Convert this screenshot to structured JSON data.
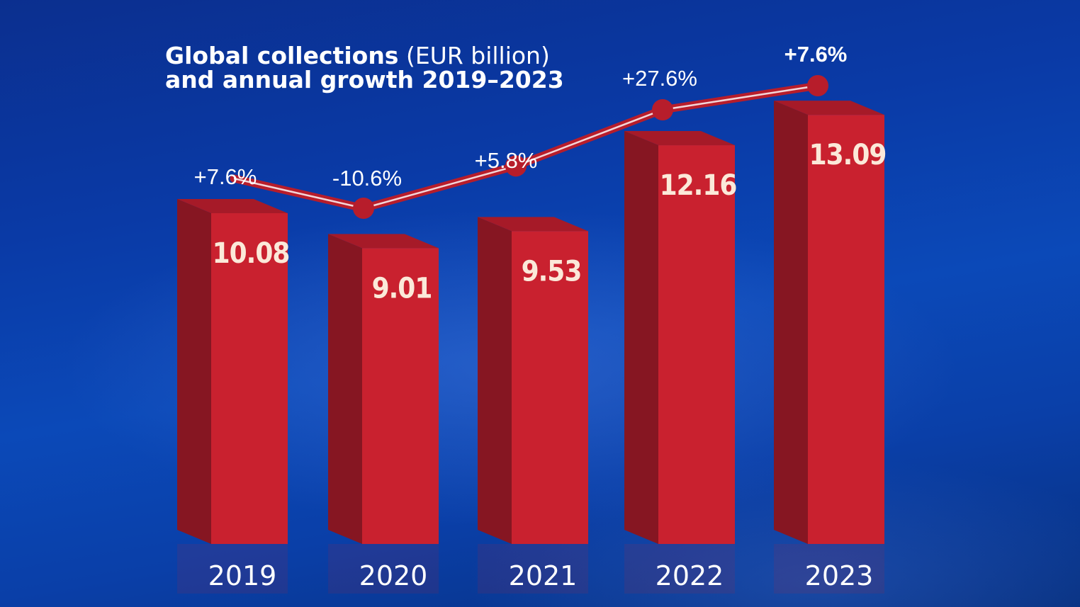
{
  "title": {
    "line1_bold": "Global collections",
    "line1_light": "(EUR billion)",
    "line2": "and annual growth 2019–2023"
  },
  "colors": {
    "bar_front": "#c9212f",
    "bar_side": "#861622",
    "bar_top": "#a61a28",
    "line": "#b71d2b",
    "value_text": "#fbe9d9"
  },
  "chart_data": {
    "type": "bar",
    "categories": [
      "2019",
      "2020",
      "2021",
      "2022",
      "2023"
    ],
    "series": [
      {
        "values": [
          10.08,
          9.01,
          9.53,
          12.16,
          13.09
        ]
      }
    ],
    "value_labels": [
      "10.08",
      "9.01",
      "9.53",
      "12.16",
      "13.09"
    ],
    "growth": {
      "type": "line",
      "values": [
        7.6,
        -10.6,
        5.8,
        27.6,
        7.6
      ],
      "labels": [
        "+7.6%",
        "-10.6%",
        "+5.8%",
        "+27.6%",
        "+7.6%"
      ]
    },
    "title": "Global collections (EUR billion) and annual growth 2019–2023",
    "xlabel": "",
    "ylabel": "",
    "ylim": [
      0,
      14
    ],
    "grid": false,
    "legend": "none"
  }
}
